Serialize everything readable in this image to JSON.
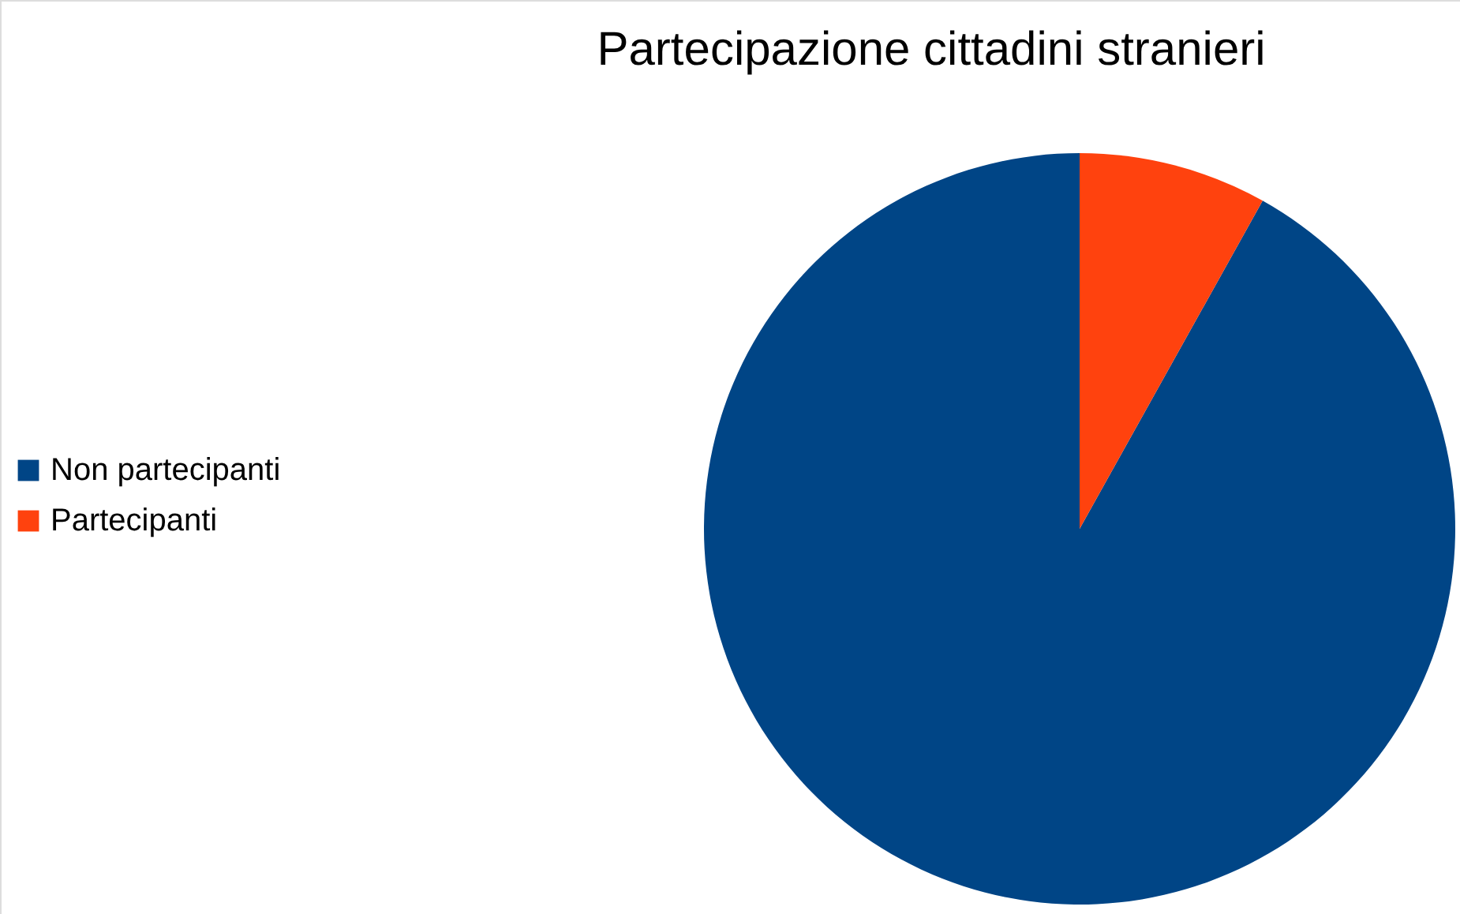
{
  "chart_data": {
    "type": "pie",
    "title": "Partecipazione cittadini stranieri",
    "categories": [
      "Non partecipanti",
      "Partecipanti"
    ],
    "values": [
      91.9,
      8.1
    ],
    "colors": [
      "#004586",
      "#ff420e"
    ],
    "legend": "left"
  }
}
